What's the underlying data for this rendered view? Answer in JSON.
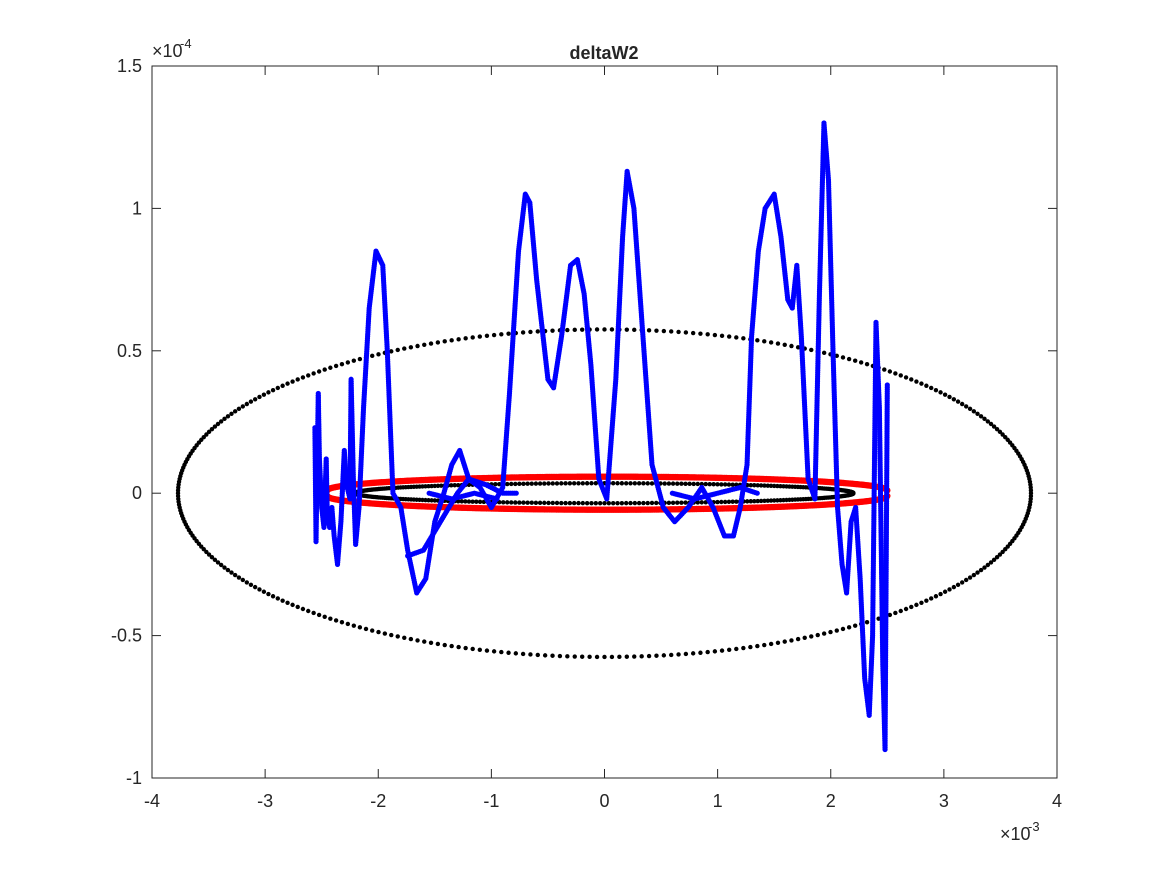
{
  "chart_data": {
    "type": "scatter",
    "title": "deltaW2",
    "xlabel": "",
    "ylabel": "",
    "xlim": [
      -4,
      4
    ],
    "ylim": [
      -1,
      1.5
    ],
    "x_exponent_label": "×10",
    "x_exponent": "-3",
    "y_exponent_label": "×10",
    "y_exponent": "-4",
    "xticks": [
      -4,
      -3,
      -2,
      -1,
      0,
      1,
      2,
      3,
      4
    ],
    "xtick_labels": [
      "-4",
      "-3",
      "-2",
      "-1",
      "0",
      "1",
      "2",
      "3",
      "4"
    ],
    "yticks": [
      -1,
      -0.5,
      0,
      0.5,
      1,
      1.5
    ],
    "ytick_labels": [
      "-1",
      "-0.5",
      "0",
      "0.5",
      "1",
      "1.5"
    ],
    "grid": false,
    "legend": "none",
    "colors": {
      "outer": "#000000",
      "inner": "#000000",
      "red": "#ff0000",
      "blue": "#0000ff",
      "axes": "#262626"
    },
    "series": [
      {
        "kind": "ellipse",
        "color": "outer",
        "center": [
          0,
          0
        ],
        "semi_axes": [
          3.77,
          0.575
        ],
        "points": 360
      },
      {
        "kind": "ellipse",
        "color": "inner",
        "center": [
          0,
          0
        ],
        "semi_axes": [
          2.2,
          0.035
        ],
        "points": 360
      },
      {
        "kind": "band",
        "color": "red",
        "x_range": [
          -2.45,
          2.5
        ],
        "half_width": 0.048,
        "points": 320
      },
      {
        "kind": "polyline",
        "color": "blue",
        "points": [
          [
            -2.56,
            0.23
          ],
          [
            -2.55,
            -0.17
          ],
          [
            -2.54,
            0.1
          ],
          [
            -2.53,
            0.35
          ],
          [
            -2.52,
            0.12
          ],
          [
            -2.5,
            -0.05
          ],
          [
            -2.48,
            -0.12
          ],
          [
            -2.46,
            0.12
          ],
          [
            -2.45,
            -0.08
          ],
          [
            -2.43,
            -0.12
          ],
          [
            -2.41,
            -0.05
          ],
          [
            -2.39,
            -0.15
          ],
          [
            -2.36,
            -0.25
          ],
          [
            -2.33,
            -0.1
          ],
          [
            -2.3,
            0.15
          ],
          [
            -2.28,
            0.03
          ],
          [
            -2.25,
            -0.02
          ],
          [
            -2.24,
            0.4
          ],
          [
            -2.22,
            0.05
          ],
          [
            -2.2,
            -0.18
          ],
          [
            -2.17,
            -0.05
          ],
          [
            -2.13,
            0.3
          ],
          [
            -2.08,
            0.65
          ],
          [
            -2.02,
            0.85
          ],
          [
            -1.96,
            0.8
          ],
          [
            -1.92,
            0.5
          ],
          [
            -1.87,
            0.0
          ],
          [
            -1.8,
            -0.05
          ],
          [
            -1.74,
            -0.2
          ],
          [
            -1.66,
            -0.35
          ],
          [
            -1.58,
            -0.3
          ],
          [
            -1.5,
            -0.1
          ],
          [
            -1.42,
            0.0
          ],
          [
            -1.35,
            0.1
          ],
          [
            -1.28,
            0.15
          ],
          [
            -1.2,
            0.05
          ],
          [
            -1.1,
            0.02
          ],
          [
            -1.0,
            -0.05
          ],
          [
            -0.9,
            0.02
          ],
          [
            -0.84,
            0.35
          ],
          [
            -0.76,
            0.85
          ],
          [
            -0.7,
            1.05
          ],
          [
            -0.66,
            1.02
          ],
          [
            -0.6,
            0.75
          ],
          [
            -0.5,
            0.4
          ],
          [
            -0.45,
            0.37
          ],
          [
            -0.38,
            0.55
          ],
          [
            -0.3,
            0.8
          ],
          [
            -0.24,
            0.82
          ],
          [
            -0.18,
            0.7
          ],
          [
            -0.12,
            0.45
          ],
          [
            -0.05,
            0.05
          ],
          [
            0.02,
            -0.02
          ],
          [
            0.1,
            0.4
          ],
          [
            0.16,
            0.9
          ],
          [
            0.2,
            1.13
          ],
          [
            0.26,
            1.0
          ],
          [
            0.34,
            0.55
          ],
          [
            0.42,
            0.1
          ],
          [
            0.52,
            -0.05
          ],
          [
            0.62,
            -0.1
          ],
          [
            0.74,
            -0.05
          ],
          [
            0.86,
            0.02
          ],
          [
            0.96,
            -0.05
          ],
          [
            1.06,
            -0.15
          ],
          [
            1.14,
            -0.15
          ],
          [
            1.2,
            -0.05
          ],
          [
            1.26,
            0.1
          ],
          [
            1.3,
            0.55
          ],
          [
            1.36,
            0.85
          ],
          [
            1.42,
            1.0
          ],
          [
            1.5,
            1.05
          ],
          [
            1.56,
            0.9
          ],
          [
            1.62,
            0.68
          ],
          [
            1.66,
            0.65
          ],
          [
            1.7,
            0.8
          ],
          [
            1.74,
            0.55
          ],
          [
            1.8,
            0.05
          ],
          [
            1.86,
            -0.02
          ],
          [
            1.9,
            0.7
          ],
          [
            1.94,
            1.3
          ],
          [
            1.98,
            1.1
          ],
          [
            2.02,
            0.5
          ],
          [
            2.06,
            -0.05
          ],
          [
            2.1,
            -0.25
          ],
          [
            2.14,
            -0.35
          ],
          [
            2.18,
            -0.1
          ],
          [
            2.22,
            -0.05
          ],
          [
            2.26,
            -0.3
          ],
          [
            2.3,
            -0.65
          ],
          [
            2.34,
            -0.78
          ],
          [
            2.37,
            -0.5
          ],
          [
            2.4,
            0.6
          ],
          [
            2.43,
            0.3
          ],
          [
            2.46,
            -0.6
          ],
          [
            2.48,
            -0.9
          ],
          [
            2.5,
            0.38
          ]
        ]
      },
      {
        "kind": "polyline",
        "color": "blue",
        "points": [
          [
            -1.74,
            -0.22
          ],
          [
            -1.6,
            -0.2
          ],
          [
            -1.45,
            -0.1
          ],
          [
            -1.3,
            0.0
          ],
          [
            -1.2,
            0.05
          ],
          [
            -1.05,
            0.03
          ],
          [
            -0.9,
            0.0
          ],
          [
            -0.78,
            0.0
          ]
        ]
      },
      {
        "kind": "polyline",
        "color": "blue",
        "points": [
          [
            -1.55,
            0.0
          ],
          [
            -1.35,
            -0.02
          ],
          [
            -1.15,
            0.0
          ],
          [
            -0.95,
            -0.02
          ]
        ]
      },
      {
        "kind": "polyline",
        "color": "blue",
        "points": [
          [
            0.6,
            0.0
          ],
          [
            0.8,
            -0.02
          ],
          [
            1.0,
            0.0
          ],
          [
            1.2,
            0.02
          ],
          [
            1.35,
            0.0
          ]
        ]
      }
    ]
  }
}
